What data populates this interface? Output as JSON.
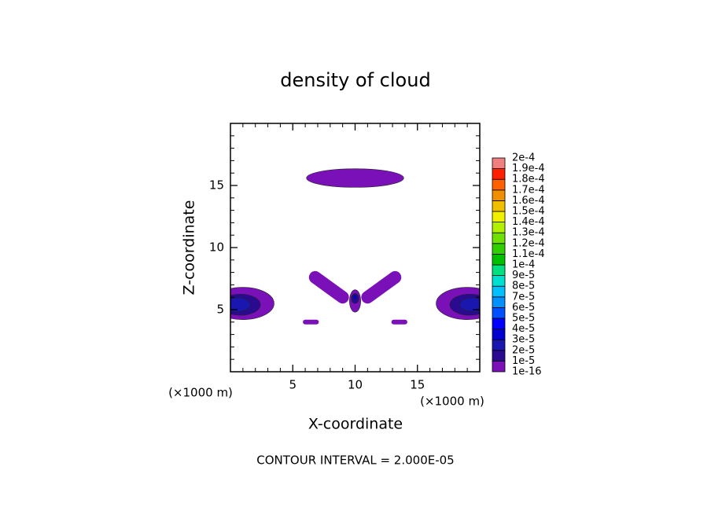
{
  "chart_data": {
    "type": "contour",
    "title": "density of cloud",
    "x_label": "X-coordinate",
    "y_label": "Z-coordinate",
    "x_unit_left": "(×1000 m)",
    "x_unit_right": "(×1000 m)",
    "footer": "CONTOUR INTERVAL = 2.000E-05",
    "xlim": [
      0,
      20
    ],
    "ylim": [
      0,
      20
    ],
    "xticks": [
      5,
      10,
      15
    ],
    "yticks": [
      5,
      10,
      15
    ],
    "xminorticks": [
      1,
      2,
      3,
      4,
      6,
      7,
      8,
      9,
      11,
      12,
      13,
      14,
      16,
      17,
      18,
      19
    ],
    "yminorticks": [
      1,
      2,
      3,
      4,
      6,
      7,
      8,
      9,
      11,
      12,
      13,
      14,
      16,
      17,
      18,
      19
    ],
    "colorbar": {
      "levels": [
        {
          "value": 1e-16,
          "label": "1e-16"
        },
        {
          "value": 1e-05,
          "label": "1e-5"
        },
        {
          "value": 2e-05,
          "label": "2e-5"
        },
        {
          "value": 3e-05,
          "label": "3e-5"
        },
        {
          "value": 4e-05,
          "label": "4e-5"
        },
        {
          "value": 5e-05,
          "label": "5e-5"
        },
        {
          "value": 6e-05,
          "label": "6e-5"
        },
        {
          "value": 7e-05,
          "label": "7e-5"
        },
        {
          "value": 8e-05,
          "label": "8e-5"
        },
        {
          "value": 9e-05,
          "label": "9e-5"
        },
        {
          "value": 0.0001,
          "label": "1e-4"
        },
        {
          "value": 0.00011,
          "label": "1.1e-4"
        },
        {
          "value": 0.00012,
          "label": "1.2e-4"
        },
        {
          "value": 0.00013,
          "label": "1.3e-4"
        },
        {
          "value": 0.00014,
          "label": "1.4e-4"
        },
        {
          "value": 0.00015,
          "label": "1.5e-4"
        },
        {
          "value": 0.00016,
          "label": "1.6e-4"
        },
        {
          "value": 0.00017,
          "label": "1.7e-4"
        },
        {
          "value": 0.00018,
          "label": "1.8e-4"
        },
        {
          "value": 0.00019,
          "label": "1.9e-4"
        },
        {
          "value": 0.0002,
          "label": "2e-4"
        }
      ],
      "colors": [
        "#7a10b8",
        "#2a0a90",
        "#1a16b0",
        "#0000d0",
        "#0000ff",
        "#0050ff",
        "#0090ff",
        "#00c0ff",
        "#00e0d0",
        "#00e080",
        "#00c000",
        "#30d000",
        "#70e000",
        "#b0f000",
        "#f0f000",
        "#f0c000",
        "#f09000",
        "#ff6000",
        "#ff2000",
        "#f08080"
      ]
    }
  }
}
